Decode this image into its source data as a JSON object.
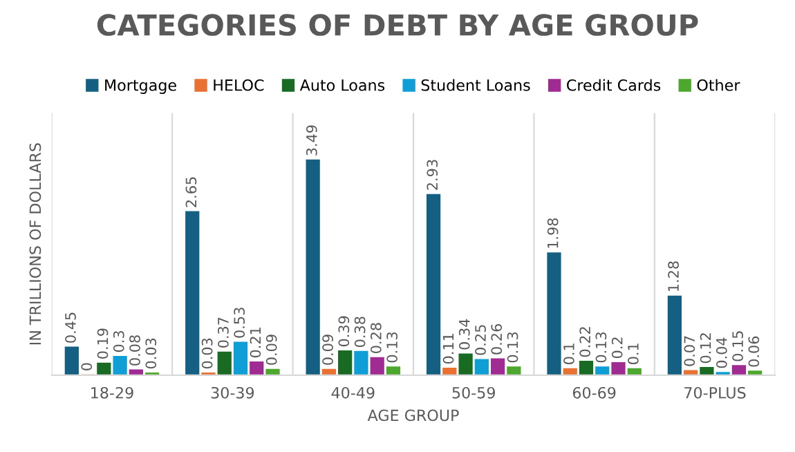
{
  "chart_data": {
    "type": "bar",
    "title": "CATEGORIES OF DEBT BY AGE GROUP",
    "xlabel": "AGE GROUP",
    "ylabel": "IN TRILLIONS OF DOLLARS",
    "categories": [
      "18-29",
      "30-39",
      "40-49",
      "50-59",
      "60-69",
      "70-PLUS"
    ],
    "series": [
      {
        "name": "Mortgage",
        "color": "#156082",
        "values": [
          0.45,
          2.65,
          3.49,
          2.93,
          1.98,
          1.28
        ]
      },
      {
        "name": "HELOC",
        "color": "#e97132",
        "values": [
          0,
          0.03,
          0.09,
          0.11,
          0.1,
          0.07
        ]
      },
      {
        "name": "Auto Loans",
        "color": "#196b24",
        "values": [
          0.19,
          0.37,
          0.39,
          0.34,
          0.22,
          0.12
        ]
      },
      {
        "name": "Student Loans",
        "color": "#0f9ed5",
        "values": [
          0.3,
          0.53,
          0.38,
          0.25,
          0.13,
          0.04
        ]
      },
      {
        "name": "Credit Cards",
        "color": "#a02b93",
        "values": [
          0.08,
          0.21,
          0.28,
          0.26,
          0.2,
          0.15
        ]
      },
      {
        "name": "Other",
        "color": "#4ea72e",
        "values": [
          0.03,
          0.09,
          0.13,
          0.13,
          0.1,
          0.06
        ]
      }
    ],
    "data_labels": true,
    "legend": "top",
    "grid": "x"
  }
}
